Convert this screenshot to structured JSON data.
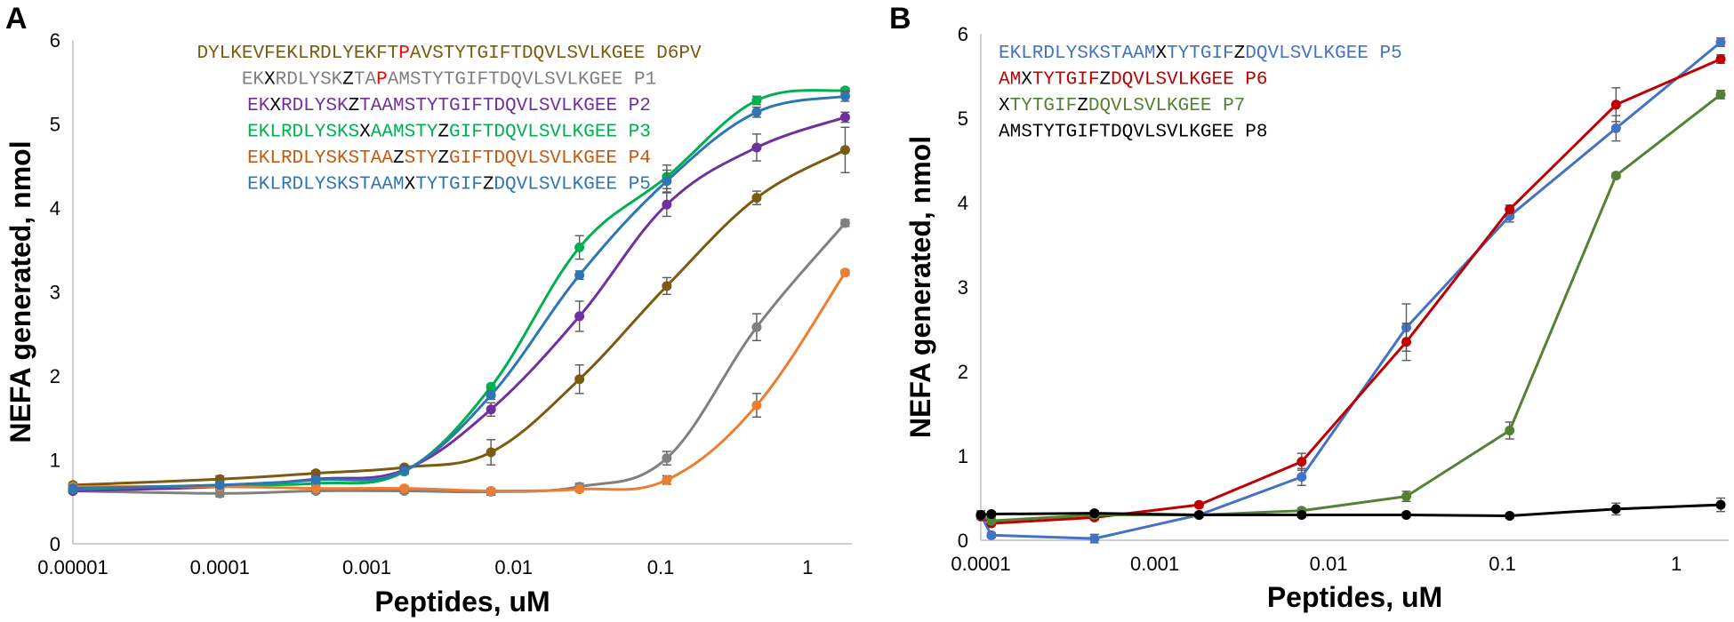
{
  "panels": [
    {
      "letter": "A",
      "chart_data": {
        "type": "line",
        "xscale": "log",
        "xlabel": "Peptides, uM",
        "ylabel": "NEFA generated, nmol",
        "xlim": [
          1e-05,
          2
        ],
        "ylim": [
          0,
          6
        ],
        "x_ticks": [
          {
            "v": 1e-05,
            "label": "0.00001"
          },
          {
            "v": 0.0001,
            "label": "0.0001"
          },
          {
            "v": 0.001,
            "label": "0.001"
          },
          {
            "v": 0.01,
            "label": "0.01"
          },
          {
            "v": 0.1,
            "label": "0.1"
          },
          {
            "v": 1,
            "label": "1"
          }
        ],
        "y_ticks": [
          {
            "v": 0,
            "label": "0"
          },
          {
            "v": 1,
            "label": "1"
          },
          {
            "v": 2,
            "label": "2"
          },
          {
            "v": 3,
            "label": "3"
          },
          {
            "v": 4,
            "label": "4"
          },
          {
            "v": 5,
            "label": "5"
          },
          {
            "v": 6,
            "label": "6"
          }
        ],
        "smooth": true,
        "series": [
          {
            "name": "D6PV",
            "color": "#7B5B0F",
            "x": [
              1e-05,
              0.0001,
              0.00045,
              0.0018,
              0.007,
              0.028,
              0.11,
              0.45,
              1.8
            ],
            "values": [
              0.7,
              0.77,
              0.84,
              0.91,
              1.09,
              1.96,
              3.07,
              4.12,
              4.69
            ],
            "err": [
              0.03,
              0.04,
              0.03,
              0.03,
              0.15,
              0.17,
              0.1,
              0.08,
              0.27
            ]
          },
          {
            "name": "P1",
            "color": "#808080",
            "x": [
              1e-05,
              0.0001,
              0.00045,
              0.0018,
              0.007,
              0.028,
              0.11,
              0.45,
              1.8
            ],
            "values": [
              0.63,
              0.6,
              0.63,
              0.63,
              0.62,
              0.68,
              1.02,
              2.58,
              3.82
            ],
            "err": [
              0.03,
              0.04,
              0.03,
              0.03,
              0.04,
              0.04,
              0.08,
              0.16,
              0.04
            ]
          },
          {
            "name": "P2",
            "color": "#7030A0",
            "x": [
              1e-05,
              0.0001,
              0.00045,
              0.0018,
              0.007,
              0.028,
              0.11,
              0.45,
              1.8
            ],
            "values": [
              0.63,
              0.68,
              0.77,
              0.88,
              1.6,
              2.71,
              4.04,
              4.72,
              5.08
            ],
            "err": [
              0.03,
              0.03,
              0.03,
              0.03,
              0.08,
              0.18,
              0.14,
              0.16,
              0.06
            ]
          },
          {
            "name": "P3",
            "color": "#00B050",
            "x": [
              1e-05,
              0.0001,
              0.00045,
              0.0018,
              0.007,
              0.028,
              0.11,
              0.45,
              1.8
            ],
            "values": [
              0.65,
              0.7,
              0.72,
              0.86,
              1.87,
              3.53,
              4.37,
              5.28,
              5.4
            ],
            "err": [
              0.03,
              0.03,
              0.03,
              0.03,
              0.03,
              0.14,
              0.14,
              0.05,
              0.03
            ]
          },
          {
            "name": "P4",
            "color": "#ED7D31",
            "x": [
              1e-05,
              0.0001,
              0.00045,
              0.0018,
              0.007,
              0.028,
              0.11,
              0.45,
              1.8
            ],
            "values": [
              0.68,
              0.68,
              0.66,
              0.66,
              0.63,
              0.65,
              0.76,
              1.65,
              3.23
            ],
            "err": [
              0.03,
              0.03,
              0.03,
              0.03,
              0.03,
              0.03,
              0.05,
              0.14,
              0.03
            ]
          },
          {
            "name": "P5",
            "color": "#2E75B6",
            "x": [
              1e-05,
              0.0001,
              0.00045,
              0.0018,
              0.007,
              0.028,
              0.11,
              0.45,
              1.8
            ],
            "values": [
              0.66,
              0.7,
              0.76,
              0.87,
              1.77,
              3.2,
              4.32,
              5.14,
              5.33
            ],
            "err": [
              0.03,
              0.03,
              0.03,
              0.03,
              0.05,
              0.05,
              0.13,
              0.06,
              0.06
            ]
          }
        ],
        "legend": {
          "placement": "top-center",
          "rows": [
            {
              "segments": [
                {
                  "t": "DYLKEVFEKLRDLYEKFT",
                  "c": "#7B5B0F"
                },
                {
                  "t": "P",
                  "c": "#FF0000"
                },
                {
                  "t": "AVSTYTGIFTDQVLSVLKGEE D6PV",
                  "c": "#7B5B0F"
                }
              ]
            },
            {
              "segments": [
                {
                  "t": "EK",
                  "c": "#808080"
                },
                {
                  "t": "X",
                  "c": "#000000"
                },
                {
                  "t": "RDLYSK",
                  "c": "#808080"
                },
                {
                  "t": "Z",
                  "c": "#000000"
                },
                {
                  "t": "TA",
                  "c": "#808080"
                },
                {
                  "t": "P",
                  "c": "#FF0000"
                },
                {
                  "t": "AMSTYTGIFTDQVLSVLKGEE P1",
                  "c": "#808080"
                }
              ]
            },
            {
              "segments": [
                {
                  "t": "EK",
                  "c": "#7030A0"
                },
                {
                  "t": "X",
                  "c": "#000000"
                },
                {
                  "t": "RDLYSK",
                  "c": "#7030A0"
                },
                {
                  "t": "Z",
                  "c": "#000000"
                },
                {
                  "t": "TAAMSTYTGIFTDQVLSVLKGEE P2",
                  "c": "#7030A0"
                }
              ]
            },
            {
              "segments": [
                {
                  "t": "EKLRDLYSKS",
                  "c": "#00B050"
                },
                {
                  "t": "X",
                  "c": "#000000"
                },
                {
                  "t": "AAMSTY",
                  "c": "#00B050"
                },
                {
                  "t": "Z",
                  "c": "#000000"
                },
                {
                  "t": "GIFTDQVLSVLKGEE P3",
                  "c": "#00B050"
                }
              ]
            },
            {
              "segments": [
                {
                  "t": "EKLRDLYSKSTAA",
                  "c": "#C55A11"
                },
                {
                  "t": "Z",
                  "c": "#000000"
                },
                {
                  "t": "STY",
                  "c": "#C55A11"
                },
                {
                  "t": "Z",
                  "c": "#000000"
                },
                {
                  "t": "GIFTDQVLSVLKGEE P4",
                  "c": "#C55A11"
                }
              ]
            },
            {
              "segments": [
                {
                  "t": "EKLRDLYSKSTAAM",
                  "c": "#2E75B6"
                },
                {
                  "t": "X",
                  "c": "#000000"
                },
                {
                  "t": "TYTGIF",
                  "c": "#2E75B6"
                },
                {
                  "t": "Z",
                  "c": "#000000"
                },
                {
                  "t": "DQVLSVLKGEE P5",
                  "c": "#2E75B6"
                }
              ]
            }
          ]
        }
      }
    },
    {
      "letter": "B",
      "chart_data": {
        "type": "line",
        "xscale": "log",
        "xlabel": "Peptides, uM",
        "ylabel": "NEFA generated, nmol",
        "xlim": [
          0.0001,
          2
        ],
        "ylim": [
          0,
          6
        ],
        "x_ticks": [
          {
            "v": 0.0001,
            "label": "0.0001"
          },
          {
            "v": 0.001,
            "label": "0.001"
          },
          {
            "v": 0.01,
            "label": "0.01"
          },
          {
            "v": 0.1,
            "label": "0.1"
          },
          {
            "v": 1,
            "label": "1"
          }
        ],
        "y_ticks": [
          {
            "v": 0,
            "label": "0"
          },
          {
            "v": 1,
            "label": "1"
          },
          {
            "v": 2,
            "label": "2"
          },
          {
            "v": 3,
            "label": "3"
          },
          {
            "v": 4,
            "label": "4"
          },
          {
            "v": 5,
            "label": "5"
          },
          {
            "v": 6,
            "label": "6"
          }
        ],
        "smooth": false,
        "series": [
          {
            "name": "P5",
            "color": "#4472C4",
            "x": [
              0.0001,
              0.000115,
              0.00045,
              0.0018,
              0.007,
              0.028,
              0.11,
              0.45,
              1.8
            ],
            "values": [
              0.3,
              0.06,
              0.02,
              0.3,
              0.75,
              2.52,
              3.84,
              4.88,
              5.9
            ],
            "err": [
              0.03,
              0.03,
              0.05,
              0.03,
              0.1,
              0.28,
              0.07,
              0.15,
              0.05
            ]
          },
          {
            "name": "P6",
            "color": "#C00000",
            "x": [
              0.0001,
              0.000115,
              0.00045,
              0.0018,
              0.007,
              0.028,
              0.11,
              0.45,
              1.8
            ],
            "values": [
              0.28,
              0.2,
              0.27,
              0.42,
              0.93,
              2.35,
              3.92,
              5.16,
              5.7
            ],
            "err": [
              0.03,
              0.03,
              0.03,
              0.03,
              0.1,
              0.22,
              0.05,
              0.2,
              0.05
            ]
          },
          {
            "name": "P7",
            "color": "#548235",
            "x": [
              0.0001,
              0.000115,
              0.00045,
              0.0018,
              0.007,
              0.028,
              0.11,
              0.45,
              1.8
            ],
            "values": [
              0.3,
              0.23,
              0.3,
              0.3,
              0.35,
              0.52,
              1.3,
              4.32,
              5.28
            ],
            "err": [
              0.03,
              0.03,
              0.03,
              0.03,
              0.03,
              0.06,
              0.1,
              0.03,
              0.05
            ]
          },
          {
            "name": "P8",
            "color": "#000000",
            "x": [
              0.0001,
              0.000115,
              0.00045,
              0.0018,
              0.007,
              0.028,
              0.11,
              0.45,
              1.8
            ],
            "values": [
              0.3,
              0.31,
              0.32,
              0.3,
              0.3,
              0.3,
              0.29,
              0.37,
              0.42
            ],
            "err": [
              0.05,
              0.03,
              0.03,
              0.03,
              0.03,
              0.03,
              0.03,
              0.07,
              0.08
            ]
          }
        ],
        "legend": {
          "placement": "top-left",
          "rows": [
            {
              "segments": [
                {
                  "t": "EKLRDLYSKSTAAM",
                  "c": "#4472C4"
                },
                {
                  "t": "X",
                  "c": "#000000"
                },
                {
                  "t": "TYTGIF",
                  "c": "#4472C4"
                },
                {
                  "t": "Z",
                  "c": "#000000"
                },
                {
                  "t": "DQVLSVLKGEE P5",
                  "c": "#4472C4"
                }
              ]
            },
            {
              "segments": [
                {
                  "t": "AM",
                  "c": "#C00000"
                },
                {
                  "t": "X",
                  "c": "#000000"
                },
                {
                  "t": "TYTGIF",
                  "c": "#C00000"
                },
                {
                  "t": "Z",
                  "c": "#000000"
                },
                {
                  "t": "DQVLSVLKGEE P6",
                  "c": "#C00000"
                }
              ]
            },
            {
              "segments": [
                {
                  "t": "X",
                  "c": "#000000"
                },
                {
                  "t": "TYTGIF",
                  "c": "#548235"
                },
                {
                  "t": "Z",
                  "c": "#000000"
                },
                {
                  "t": "DQVLSVLKGEE P7",
                  "c": "#548235"
                }
              ]
            },
            {
              "segments": [
                {
                  "t": "AMSTYTGIFTDQVLSVLKGEE P8",
                  "c": "#000000"
                }
              ]
            }
          ]
        }
      }
    }
  ]
}
